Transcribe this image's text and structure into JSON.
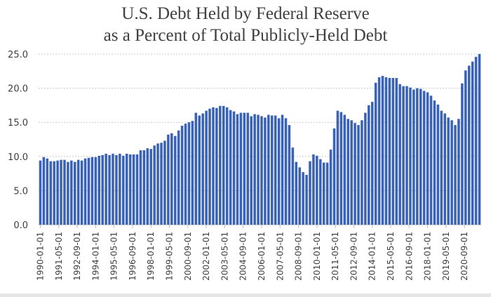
{
  "chart_data": {
    "type": "bar",
    "title": "U.S. Debt Held by Federal Reserve",
    "subtitle": "as a Percent of Total Publicly-Held Debt",
    "xlabel": "",
    "ylabel": "",
    "ylim": [
      0,
      25
    ],
    "yticks": [
      "0.0",
      "5.0",
      "10.0",
      "15.0",
      "20.0",
      "25.0"
    ],
    "grid": true,
    "legend": "none",
    "bar_color": "#3a63b8",
    "frequency": "quarterly",
    "start": "1990-01-01",
    "xtick_labels": [
      "1990-01-01",
      "1991-05-01",
      "1992-09-01",
      "1994-01-01",
      "1995-05-01",
      "1996-09-01",
      "1998-01-01",
      "1999-05-01",
      "2000-09-01",
      "2002-01-01",
      "2003-05-01",
      "2004-09-01",
      "2006-01-01",
      "2007-05-01",
      "2008-09-01",
      "2010-01-01",
      "2011-05-01",
      "2012-09-01",
      "2014-01-01",
      "2015-05-01",
      "2016-09-01",
      "2018-01-01",
      "2019-05-01",
      "2020-09-01"
    ],
    "values": [
      9.4,
      9.9,
      9.7,
      9.3,
      9.3,
      9.4,
      9.5,
      9.5,
      9.2,
      9.4,
      9.2,
      9.5,
      9.4,
      9.7,
      9.8,
      9.9,
      9.9,
      10.1,
      10.2,
      10.4,
      10.2,
      10.4,
      10.2,
      10.4,
      10.1,
      10.4,
      10.3,
      10.3,
      10.3,
      10.9,
      10.9,
      11.2,
      11.1,
      11.6,
      11.9,
      12.0,
      12.3,
      13.2,
      13.4,
      13.0,
      13.8,
      14.5,
      14.8,
      15.0,
      15.2,
      16.4,
      16.0,
      16.3,
      16.7,
      17.0,
      17.2,
      17.1,
      17.4,
      17.4,
      17.2,
      16.8,
      16.6,
      16.2,
      16.4,
      16.4,
      16.4,
      15.9,
      16.2,
      16.1,
      15.9,
      15.7,
      16.1,
      16.0,
      16.0,
      15.6,
      16.1,
      15.6,
      14.6,
      11.3,
      9.2,
      8.4,
      7.7,
      7.3,
      9.3,
      10.3,
      10.1,
      9.6,
      9.1,
      9.1,
      11.0,
      14.1,
      16.7,
      16.5,
      16.1,
      15.5,
      15.3,
      14.9,
      14.6,
      15.3,
      16.4,
      17.5,
      18.0,
      20.8,
      21.6,
      21.8,
      21.6,
      21.5,
      21.5,
      21.5,
      20.6,
      20.3,
      20.3,
      20.1,
      19.8,
      20.0,
      19.9,
      19.6,
      19.4,
      18.9,
      18.2,
      17.6,
      16.7,
      16.3,
      15.7,
      15.3,
      14.6,
      15.5,
      20.7,
      22.6,
      23.3,
      23.9,
      24.6,
      25.0
    ]
  }
}
